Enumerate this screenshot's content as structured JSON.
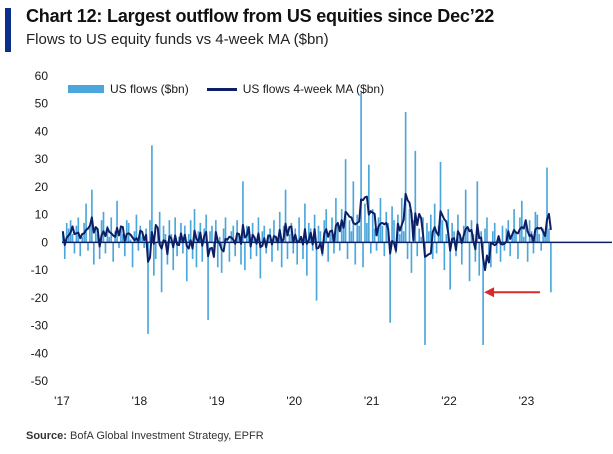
{
  "chart_data": {
    "type": "bar",
    "title": "Chart 12: Largest outflow from US equities since Dec’22",
    "subtitle": "Flows to US equity funds vs 4-week MA ($bn)",
    "source_label": "Source:",
    "source_text": "BofA Global Investment Strategy, EPFR",
    "ylim": [
      -50,
      60
    ],
    "yticks": [
      60,
      50,
      40,
      30,
      20,
      10,
      0,
      -10,
      -20,
      -30,
      -40,
      -50
    ],
    "xticks": [
      "'17",
      "'18",
      "'19",
      "'20",
      "'21",
      "'22",
      "'23"
    ],
    "x_range": [
      2017.0,
      2023.95
    ],
    "legend": [
      "US flows ($bn)",
      "US flows 4-week MA ($bn)"
    ],
    "annotation": "red arrow pointing to latest outflow (~-18)",
    "series": [
      {
        "name": "US flows ($bn)",
        "type": "bar",
        "color": "#4ba6dc",
        "values": [
          4,
          -6,
          7,
          5,
          8,
          3,
          -4,
          6,
          9,
          -5,
          2,
          7,
          14,
          -3,
          6,
          19,
          -8,
          5,
          3,
          -6,
          8,
          11,
          -4,
          6,
          2,
          9,
          -7,
          4,
          15,
          -2,
          6,
          3,
          -5,
          8,
          7,
          1,
          -9,
          4,
          10,
          -3,
          6,
          2,
          -2,
          5,
          -33,
          8,
          35,
          -12,
          -6,
          4,
          11,
          -18,
          6,
          3,
          -8,
          8,
          3,
          -10,
          9,
          -5,
          2,
          7,
          -4,
          6,
          -14,
          3,
          8,
          -6,
          12,
          -9,
          4,
          7,
          -7,
          5,
          10,
          -28,
          4,
          6,
          -3,
          8,
          -9,
          2,
          -11,
          5,
          9,
          1,
          -7,
          4,
          6,
          -5,
          8,
          3,
          -8,
          22,
          -10,
          6,
          4,
          -6,
          7,
          2,
          -5,
          9,
          -13,
          4,
          6,
          -4,
          3,
          5,
          -7,
          8,
          2,
          -3,
          11,
          -9,
          6,
          19,
          -6,
          3,
          7,
          -4,
          5,
          -8,
          9,
          2,
          -6,
          14,
          -12,
          7,
          5,
          -3,
          10,
          -21,
          6,
          4,
          -5,
          8,
          12,
          -7,
          3,
          9,
          -4,
          16,
          7,
          -3,
          12,
          5,
          30,
          -6,
          8,
          4,
          22,
          -8,
          10,
          6,
          54,
          -9,
          14,
          7,
          28,
          -4,
          12,
          5,
          -3,
          9,
          16,
          6,
          -5,
          11,
          7,
          -29,
          13,
          8,
          -4,
          10,
          3,
          16,
          4,
          47,
          -6,
          12,
          -11,
          8,
          33,
          -5,
          5,
          2,
          9,
          -37,
          7,
          4,
          10,
          -6,
          14,
          -4,
          6,
          29,
          8,
          -10,
          3,
          12,
          -17,
          7,
          4,
          -5,
          10,
          2,
          -8,
          6,
          19,
          5,
          -14,
          8,
          3,
          -7,
          22,
          -12,
          4,
          -37,
          5,
          9,
          -6,
          -9,
          4,
          7,
          -4,
          2,
          -7,
          6,
          -3,
          5,
          8,
          -5,
          3,
          12,
          4,
          -6,
          9,
          15,
          2,
          6,
          -7,
          8,
          4,
          -4,
          11,
          10,
          3,
          -3,
          5,
          4,
          27,
          5,
          -18
        ]
      },
      {
        "name": "US flows 4-week MA ($bn)",
        "type": "line",
        "color": "#0c1f66",
        "window": 4
      }
    ]
  }
}
